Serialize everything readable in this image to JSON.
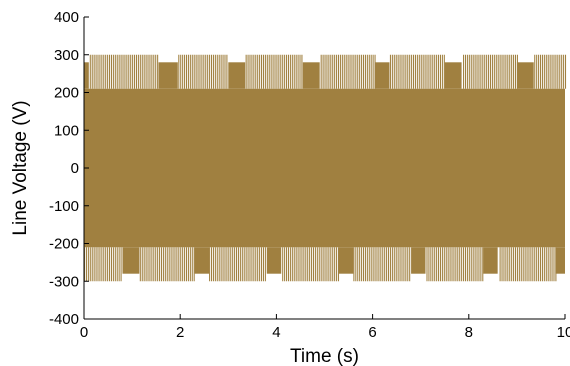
{
  "chart_data": {
    "type": "line",
    "title": "",
    "xlabel": "Time (s)",
    "ylabel": "Line Voltage (V)",
    "xlim": [
      0,
      10
    ],
    "ylim": [
      -400,
      400
    ],
    "x_ticks": [
      0,
      2,
      4,
      6,
      8,
      10
    ],
    "y_ticks": [
      400,
      300,
      200,
      100,
      0,
      -100,
      -200,
      -300,
      -400
    ],
    "grid": false,
    "series": [
      {
        "color": "#a08040",
        "pwm_levels": [
          300,
          210,
          0,
          -210,
          -300
        ],
        "upper_gaps": [
          {
            "start": 0.0,
            "end": 0.1
          },
          {
            "start": 1.55,
            "end": 1.95
          },
          {
            "start": 3.0,
            "end": 3.35
          },
          {
            "start": 4.55,
            "end": 4.9
          },
          {
            "start": 6.05,
            "end": 6.35
          },
          {
            "start": 7.5,
            "end": 7.85
          },
          {
            "start": 9.0,
            "end": 9.35
          }
        ],
        "lower_gaps": [
          {
            "start": 0.8,
            "end": 1.15
          },
          {
            "start": 2.3,
            "end": 2.6
          },
          {
            "start": 3.8,
            "end": 4.1
          },
          {
            "start": 5.3,
            "end": 5.6
          },
          {
            "start": 6.8,
            "end": 7.1
          },
          {
            "start": 8.3,
            "end": 8.6
          },
          {
            "start": 9.8,
            "end": 10.0
          }
        ]
      }
    ]
  }
}
